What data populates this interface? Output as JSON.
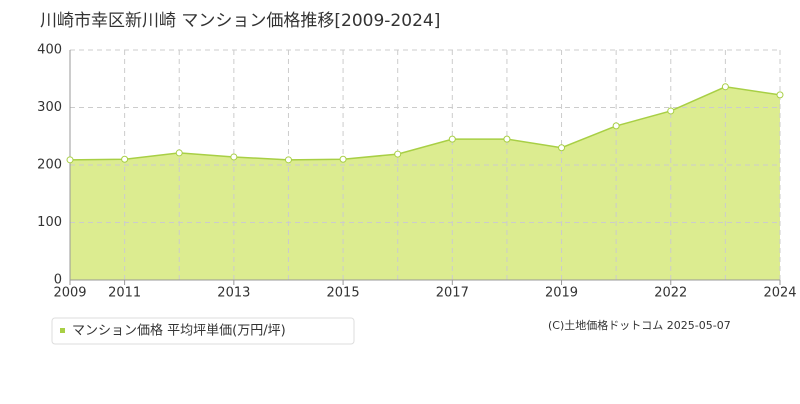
{
  "chart_data": {
    "type": "area",
    "title": "川崎市幸区新川崎 マンション価格推移[2009-2024]",
    "categories": [
      "2009",
      "2011",
      null,
      "2013",
      null,
      "2015",
      null,
      "2017",
      null,
      "2019",
      null,
      "2022",
      null,
      "2024"
    ],
    "series": [
      {
        "name": "マンション価格 平均坪単価(万円/坪)",
        "color": "#a8cf45",
        "values": [
          209,
          210,
          221,
          214,
          209,
          210,
          219,
          245,
          245,
          230,
          268,
          294,
          336,
          322
        ]
      }
    ],
    "ylim": [
      0,
      400
    ],
    "yticks": [
      0,
      100,
      200,
      300,
      400
    ],
    "grid": true,
    "source": "(C)土地価格ドットコム 2025-05-07"
  }
}
